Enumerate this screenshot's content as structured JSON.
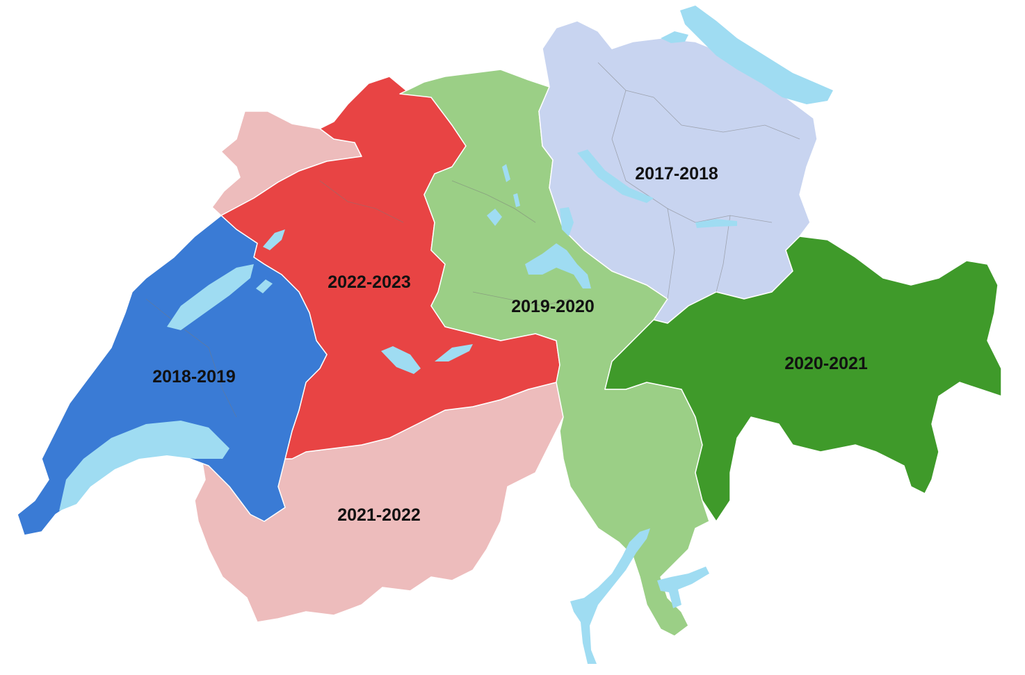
{
  "map": {
    "regions": [
      {
        "id": "north-east",
        "label": "2017-2018",
        "color": "#c8d4f0"
      },
      {
        "id": "west",
        "label": "2018-2019",
        "color": "#3a7bd5"
      },
      {
        "id": "central",
        "label": "2019-2020",
        "color": "#9bcf86"
      },
      {
        "id": "south-east",
        "label": "2020-2021",
        "color": "#3f9a2a"
      },
      {
        "id": "south-west",
        "label": "2021-2022",
        "color": "#edbcbc"
      },
      {
        "id": "mid-west",
        "label": "2022-2023",
        "color": "#e84444"
      }
    ],
    "lake_color": "#9fdcf2"
  }
}
